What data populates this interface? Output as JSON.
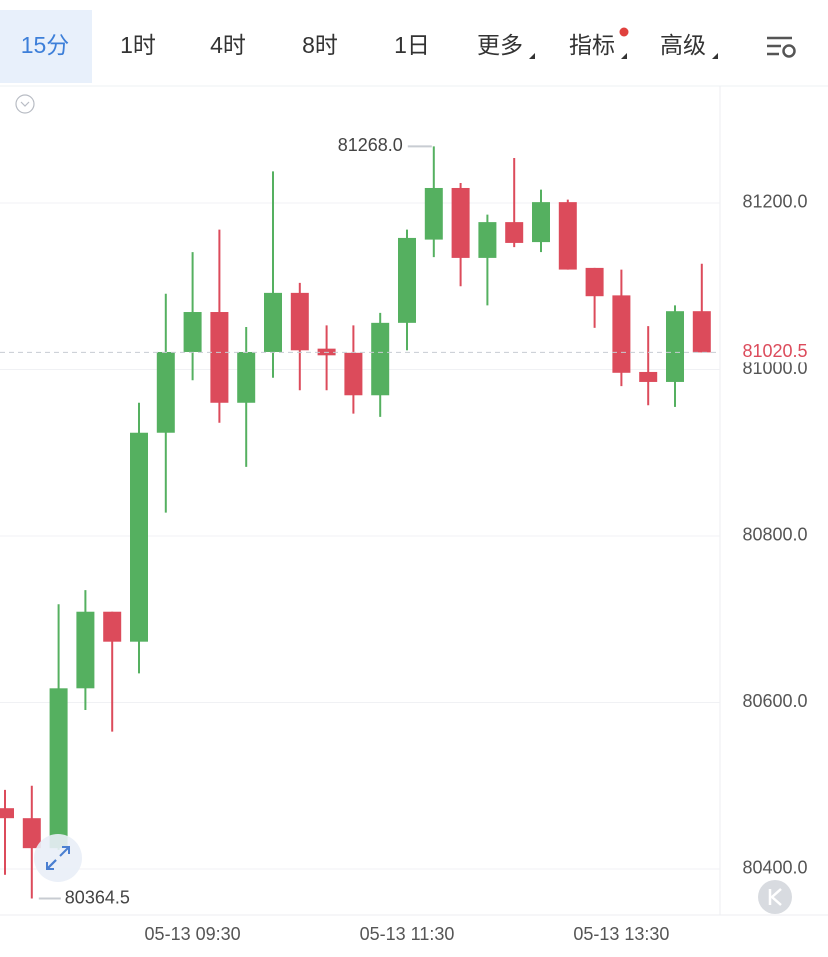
{
  "toolbar": {
    "tabs": [
      "15分",
      "1时",
      "4时",
      "8时",
      "1日",
      "更多",
      "指标",
      "高级"
    ],
    "active": 0
  },
  "chart_data": {
    "type": "candlestick",
    "categories": [
      null,
      null,
      null,
      null,
      null,
      null,
      null,
      "05-13 09:30",
      null,
      null,
      null,
      null,
      null,
      null,
      null,
      "05-13 11:30",
      null,
      null,
      null,
      null,
      null,
      null,
      null,
      "05-13 13:30",
      null,
      null,
      null
    ],
    "open": [
      80473,
      80461,
      80425,
      80617,
      80709,
      80673,
      80924,
      81021,
      81069,
      80960,
      81021,
      81092,
      81025,
      81020,
      80969,
      81056,
      81156,
      81218,
      81134,
      81177,
      81153,
      81201,
      81122,
      81089,
      80997,
      80985,
      81070
    ],
    "high": [
      80495,
      80500,
      80718,
      80735,
      80709,
      80960,
      81091,
      81141,
      81168,
      81051,
      81238,
      81104,
      81053,
      81053,
      81068,
      81168,
      81268,
      81224,
      81186,
      81254,
      81216,
      81204,
      81122,
      81120,
      81052,
      81077,
      81127
    ],
    "low": [
      80393,
      80364.5,
      80423,
      80591,
      80565,
      80635,
      80828,
      80987,
      80936,
      80883,
      80990,
      80975,
      80975,
      80947,
      80943,
      81023,
      81135,
      81100,
      81077,
      81147,
      81141,
      81120,
      81050,
      80980,
      80957,
      80955,
      81020.5
    ],
    "close": [
      80461,
      80425,
      80617,
      80709,
      80673,
      80924,
      81021,
      81069,
      80960,
      81021,
      81092,
      81023,
      81017,
      80969,
      81056,
      81158,
      81218,
      81134,
      81177,
      81152,
      81201,
      81120,
      81088,
      80996,
      80985,
      81070,
      81020.5
    ],
    "up_color": "#55b060",
    "down_color": "#dc4b5b",
    "ylim": [
      80344.7,
      81341.7
    ],
    "yticks": [
      {
        "value": 80400,
        "label": "80400.0"
      },
      {
        "value": 80600,
        "label": "80600.0"
      },
      {
        "value": 80800,
        "label": "80800.0"
      },
      {
        "value": 81000,
        "label": "81000.0"
      },
      {
        "value": 81200,
        "label": "81200.0"
      }
    ],
    "grid": true,
    "last_price": 81020.5,
    "high_label": {
      "value": 81268,
      "label": "81268.0"
    },
    "low_label": 80364.5
  }
}
